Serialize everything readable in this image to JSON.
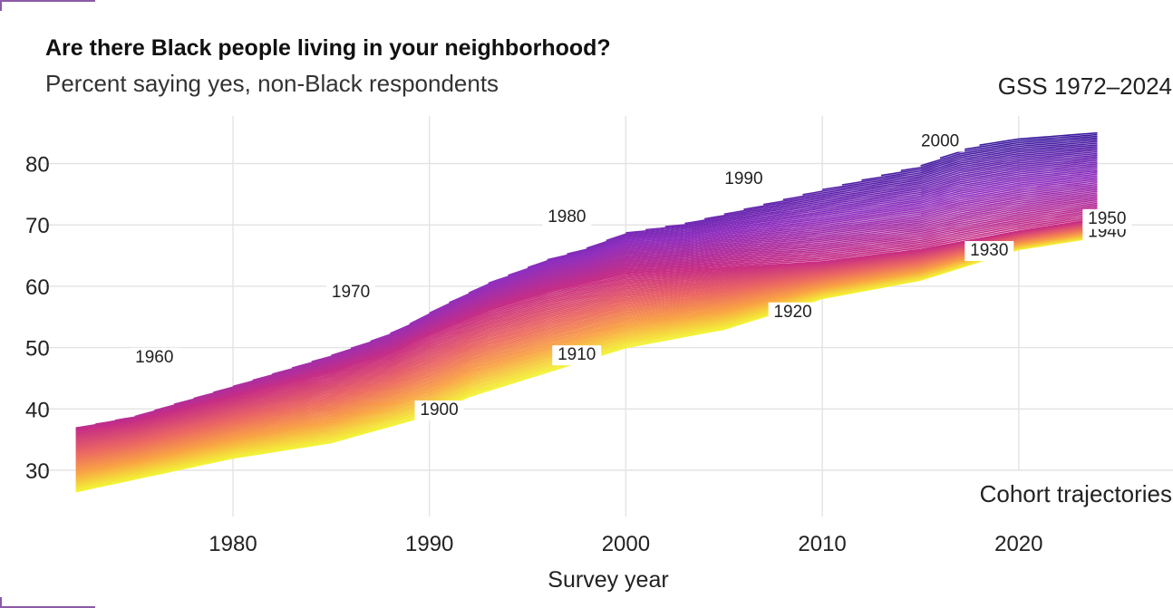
{
  "chart_data": {
    "type": "line",
    "title": "Are there Black people living in your neighborhood?",
    "subtitle": "Percent saying yes, non-Black respondents",
    "source_note": "GSS 1972–2024",
    "caption": "Cohort trajectories",
    "xlabel": "Survey year",
    "ylabel": "",
    "xlim": [
      1972,
      2024
    ],
    "ylim": [
      25,
      87
    ],
    "x_ticks": [
      1980,
      1990,
      2000,
      2010,
      2020
    ],
    "y_ticks": [
      30,
      40,
      50,
      60,
      70,
      80
    ],
    "grid": true,
    "legend": "none",
    "series_description": "One line per birth cohort from 1900 to 2000, colored yellow (1900) through orange and magenta (1950) to purple (2000); each cohort is drawn from the year it enters the survey onward",
    "cohort_range": [
      1900,
      2000
    ],
    "colors": {
      "cohort_1900": "#f3f336",
      "cohort_1915": "#f9a244",
      "cohort_1930": "#ec6a61",
      "cohort_1950": "#c82e83",
      "cohort_1975": "#8f2fbf",
      "cohort_2000": "#3a1a9e"
    },
    "cohort_labels": [
      {
        "cohort": "1900",
        "x": 1990.5,
        "y": 39
      },
      {
        "cohort": "1910",
        "x": 1997.5,
        "y": 48
      },
      {
        "cohort": "1920",
        "x": 2008.5,
        "y": 55
      },
      {
        "cohort": "1930",
        "x": 2018.5,
        "y": 65
      },
      {
        "cohort": "1940",
        "x": 2024.5,
        "y": 68
      },
      {
        "cohort": "1950",
        "x": 2024.5,
        "y": 70.2
      },
      {
        "cohort": "1960",
        "x": 1976,
        "y": 47.6
      },
      {
        "cohort": "1970",
        "x": 1986,
        "y": 58.2
      },
      {
        "cohort": "1980",
        "x": 1997,
        "y": 70.5
      },
      {
        "cohort": "1990",
        "x": 2006,
        "y": 76.7
      },
      {
        "cohort": "2000",
        "x": 2016,
        "y": 82.8
      }
    ],
    "bands": {
      "bottom_edge": [
        [
          1972,
          26.5
        ],
        [
          1980,
          32
        ],
        [
          1985,
          34.5
        ],
        [
          1990,
          39
        ],
        [
          1992,
          42
        ],
        [
          1995,
          45
        ],
        [
          1997,
          47
        ],
        [
          2000,
          50
        ],
        [
          2005,
          53
        ],
        [
          2010,
          58
        ],
        [
          2015,
          61
        ],
        [
          2020,
          66
        ],
        [
          2024,
          68
        ]
      ],
      "center_1950": [
        [
          1972,
          36.5
        ],
        [
          1975,
          38
        ],
        [
          1980,
          42
        ],
        [
          1985,
          46
        ],
        [
          1988,
          49
        ],
        [
          1990,
          52
        ],
        [
          1993,
          56
        ],
        [
          1996,
          59
        ],
        [
          2000,
          62
        ],
        [
          2005,
          63
        ],
        [
          2010,
          64
        ],
        [
          2015,
          66
        ],
        [
          2020,
          69
        ],
        [
          2024,
          71
        ]
      ],
      "top_edge": [
        [
          1972,
          41.5
        ],
        [
          1975,
          43.5
        ],
        [
          1977,
          46
        ],
        [
          1980,
          49
        ],
        [
          1983,
          52
        ],
        [
          1985,
          54
        ],
        [
          1987,
          56
        ],
        [
          1989,
          58.5
        ],
        [
          1991,
          62
        ],
        [
          1993,
          65
        ],
        [
          1996,
          68.5
        ],
        [
          1998,
          70
        ],
        [
          2000,
          72.5
        ],
        [
          2003,
          73.5
        ],
        [
          2006,
          75.5
        ],
        [
          2010,
          78
        ],
        [
          2015,
          80.5
        ],
        [
          2017,
          82.5
        ],
        [
          2020,
          84
        ],
        [
          2024,
          85
        ]
      ]
    }
  }
}
